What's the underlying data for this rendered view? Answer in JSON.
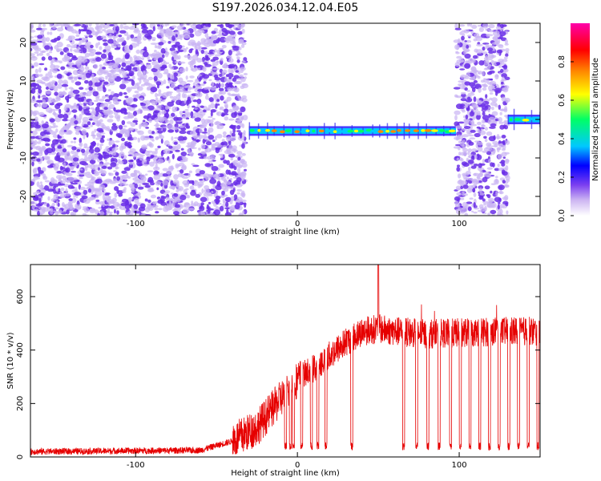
{
  "title": "S197.2026.034.12.04.E05",
  "chart_data": [
    {
      "type": "heatmap",
      "name": "spectrogram",
      "xlabel": "Height of straight line (km)",
      "ylabel": "Frequency (Hz)",
      "xlim": [
        -165,
        150
      ],
      "ylim": [
        -25,
        25
      ],
      "xticks": [
        -100,
        0,
        100
      ],
      "yticks": [
        -20,
        -10,
        0,
        10,
        20
      ],
      "colorbar": {
        "label": "Normalized spectral amplitude",
        "range": [
          0,
          1
        ],
        "ticks": [
          "0.0",
          "0.2",
          "0.4",
          "0.6",
          "0.8"
        ],
        "tick_values": [
          0.0,
          0.2,
          0.4,
          0.6,
          0.8
        ]
      },
      "regions": [
        {
          "kind": "noise",
          "x": [
            -165,
            -32
          ],
          "level": 0.2
        },
        {
          "kind": "tone",
          "x": [
            -30,
            98
          ],
          "freq_hz": -3,
          "level": 0.75
        },
        {
          "kind": "noise",
          "x": [
            98,
            130
          ],
          "level": 0.2
        },
        {
          "kind": "tone",
          "x": [
            130,
            150
          ],
          "freq_hz": 0,
          "level": 0.65
        }
      ],
      "colors": [
        "#ffffff",
        "#cdb6f2",
        "#7b3ff0",
        "#0000ff",
        "#00c8ff",
        "#00ff66",
        "#ffff00",
        "#ff8800",
        "#ff0000",
        "#ff00aa"
      ]
    },
    {
      "type": "line",
      "name": "snr",
      "xlabel": "Height of straight line (km)",
      "ylabel": "SNR (10 * v/v)",
      "xlim": [
        -165,
        150
      ],
      "ylim": [
        0,
        720
      ],
      "xticks": [
        -100,
        0,
        100
      ],
      "yticks": [
        0,
        200,
        400,
        600
      ],
      "color": "#e60000",
      "envelope": [
        {
          "x": -165,
          "y": 20
        },
        {
          "x": -60,
          "y": 25
        },
        {
          "x": -40,
          "y": 60
        },
        {
          "x": -25,
          "y": 110
        },
        {
          "x": -10,
          "y": 220
        },
        {
          "x": 0,
          "y": 290
        },
        {
          "x": 10,
          "y": 330
        },
        {
          "x": 20,
          "y": 380
        },
        {
          "x": 30,
          "y": 430
        },
        {
          "x": 40,
          "y": 470
        },
        {
          "x": 50,
          "y": 480
        },
        {
          "x": 60,
          "y": 470
        },
        {
          "x": 80,
          "y": 460
        },
        {
          "x": 100,
          "y": 465
        },
        {
          "x": 130,
          "y": 470
        },
        {
          "x": 150,
          "y": 470
        }
      ],
      "peak": {
        "x": 50,
        "y": 720
      },
      "dropouts": [
        -8,
        -5,
        -3,
        2,
        8,
        12,
        17,
        33,
        65,
        73,
        80,
        87,
        94,
        100,
        106,
        112,
        118,
        124,
        130,
        136,
        142,
        148
      ]
    }
  ]
}
